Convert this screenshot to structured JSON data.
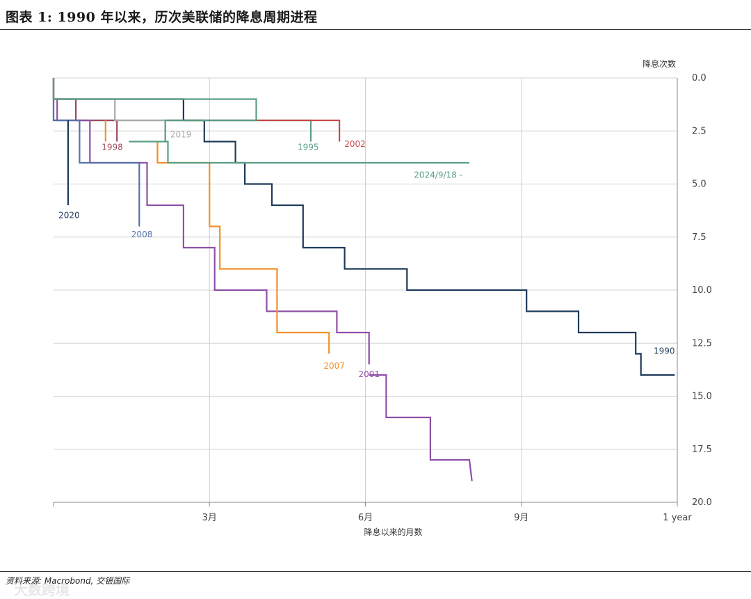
{
  "header": {
    "title": "图表 1: 1990 年以来，历次美联储的降息周期进程"
  },
  "footer": {
    "source": "资料来源: Macrobond, 交银国际",
    "watermark": "大数跨境"
  },
  "chart_data": {
    "type": "line",
    "title": "图表 1: 1990 年以来，历次美联储的降息周期进程",
    "xlabel": "降息以来的月数",
    "ylabel": "降息次数",
    "xlim": [
      0,
      12
    ],
    "ylim": [
      0,
      20
    ],
    "y_inverted": true,
    "y_axis_position": "right",
    "grid": true,
    "xticks": [
      {
        "value": 3,
        "label": "3月"
      },
      {
        "value": 6,
        "label": "6月"
      },
      {
        "value": 9,
        "label": "9月"
      },
      {
        "value": 12,
        "label": "1 year"
      }
    ],
    "yticks": [
      {
        "value": 0,
        "label": "0.0"
      },
      {
        "value": 2.5,
        "label": "2.5"
      },
      {
        "value": 5,
        "label": "5.0"
      },
      {
        "value": 7.5,
        "label": "7.5"
      },
      {
        "value": 10,
        "label": "10.0"
      },
      {
        "value": 12.5,
        "label": "12.5"
      },
      {
        "value": 15,
        "label": "15.0"
      },
      {
        "value": 17.5,
        "label": "17.5"
      },
      {
        "value": 20,
        "label": "20.0"
      }
    ],
    "series": [
      {
        "name": "1990",
        "color": "#1f3a5a",
        "label_at": [
          11.75,
          13
        ],
        "points": [
          [
            0,
            0
          ],
          [
            0,
            1
          ],
          [
            2.5,
            1
          ],
          [
            2.5,
            2
          ],
          [
            2.9,
            2
          ],
          [
            2.9,
            3
          ],
          [
            3.5,
            3
          ],
          [
            3.5,
            4
          ],
          [
            3.68,
            4
          ],
          [
            3.68,
            5
          ],
          [
            4.2,
            5
          ],
          [
            4.2,
            6
          ],
          [
            4.8,
            6
          ],
          [
            4.8,
            8
          ],
          [
            5.6,
            8
          ],
          [
            5.6,
            9
          ],
          [
            6.8,
            9
          ],
          [
            6.8,
            10
          ],
          [
            9.1,
            10
          ],
          [
            9.1,
            11
          ],
          [
            10.1,
            11
          ],
          [
            10.1,
            12
          ],
          [
            11.2,
            12
          ],
          [
            11.2,
            13
          ],
          [
            11.3,
            13
          ],
          [
            11.3,
            14
          ],
          [
            11.95,
            14
          ]
        ]
      },
      {
        "name": "1995",
        "color": "#5a9e83",
        "label_at": [
          4.9,
          3.4
        ],
        "points": [
          [
            0,
            0
          ],
          [
            0,
            2
          ],
          [
            4.95,
            2
          ],
          [
            4.95,
            3
          ]
        ]
      },
      {
        "name": "1998",
        "color": "#a04a5a",
        "label_at": [
          1.13,
          3.4
        ],
        "points": [
          [
            0,
            0
          ],
          [
            0,
            1
          ],
          [
            0.43,
            1
          ],
          [
            0.43,
            2
          ],
          [
            1.22,
            2
          ],
          [
            1.22,
            3
          ]
        ]
      },
      {
        "name": "2001",
        "color": "#8e4fa8",
        "label_at": [
          6.07,
          14.1
        ],
        "points": [
          [
            0,
            0
          ],
          [
            0,
            1
          ],
          [
            0.07,
            1
          ],
          [
            0.07,
            2
          ],
          [
            0.7,
            2
          ],
          [
            0.7,
            4
          ],
          [
            1.8,
            4
          ],
          [
            1.8,
            6
          ],
          [
            2.5,
            6
          ],
          [
            2.5,
            8
          ],
          [
            3.1,
            8
          ],
          [
            3.1,
            10
          ],
          [
            4.1,
            10
          ],
          [
            4.1,
            11
          ],
          [
            5.45,
            11
          ],
          [
            5.45,
            12
          ],
          [
            6.07,
            12
          ],
          [
            6.07,
            13.5
          ]
        ],
        "points2": [
          [
            6.07,
            14
          ],
          [
            6.4,
            14
          ],
          [
            6.4,
            16
          ],
          [
            7.25,
            16
          ],
          [
            7.25,
            18
          ],
          [
            8.0,
            18
          ],
          [
            8.05,
            19
          ]
        ]
      },
      {
        "name": "2002",
        "color": "#c8484a",
        "label_at": [
          5.8,
          3.25
        ],
        "points": [
          [
            2.2,
            2
          ],
          [
            5.5,
            2
          ],
          [
            5.5,
            3
          ]
        ]
      },
      {
        "name": "2007",
        "color": "#f0922a",
        "label_at": [
          5.4,
          13.7
        ],
        "points": [
          [
            1.0,
            2
          ],
          [
            1.0,
            3
          ]
        ],
        "points2": [
          [
            2.0,
            3
          ],
          [
            2.0,
            4
          ],
          [
            3.0,
            4
          ],
          [
            3.0,
            7
          ],
          [
            3.2,
            7
          ],
          [
            3.2,
            9
          ],
          [
            4.3,
            9
          ],
          [
            4.3,
            12
          ],
          [
            5.3,
            12
          ],
          [
            5.3,
            13
          ]
        ]
      },
      {
        "name": "2008",
        "color": "#5673a8",
        "label_at": [
          1.7,
          7.5
        ],
        "points": [
          [
            0,
            1
          ],
          [
            0,
            2
          ],
          [
            0.5,
            2
          ],
          [
            0.5,
            4
          ],
          [
            1.65,
            4
          ],
          [
            1.65,
            7
          ]
        ]
      },
      {
        "name": "2019",
        "color": "#aaaaaa",
        "label_at": [
          2.45,
          2.8
        ],
        "points": [
          [
            0,
            0
          ],
          [
            0,
            1
          ],
          [
            1.18,
            1
          ],
          [
            1.18,
            2
          ],
          [
            2.15,
            2
          ],
          [
            2.15,
            3
          ]
        ]
      },
      {
        "name": "2020",
        "color": "#1f3a5a",
        "label_at": [
          0.3,
          6.6
        ],
        "points": [
          [
            0.28,
            2
          ],
          [
            0.28,
            6
          ]
        ]
      },
      {
        "name": "2024/9/18 -",
        "color": "#5a9e83",
        "label_at": [
          7.4,
          4.7
        ],
        "points": [
          [
            0,
            0
          ],
          [
            0,
            1
          ],
          [
            3.9,
            1
          ],
          [
            3.9,
            2
          ],
          [
            2.15,
            2
          ],
          [
            2.15,
            3
          ],
          [
            1.45,
            3
          ],
          [
            2.15,
            3
          ],
          [
            2.2,
            3
          ],
          [
            2.2,
            4
          ],
          [
            8.0,
            4
          ]
        ]
      }
    ]
  }
}
